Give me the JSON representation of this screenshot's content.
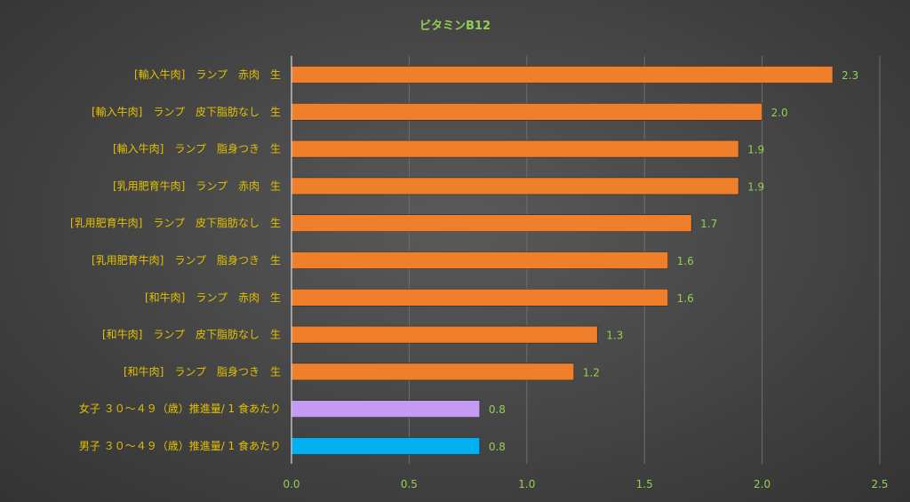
{
  "chart_data": {
    "type": "bar",
    "orientation": "horizontal",
    "title": "ビタミンB12",
    "xlim": [
      0,
      2.5
    ],
    "x_ticks": [
      "0.0",
      "0.5",
      "1.0",
      "1.5",
      "2.0",
      "2.5"
    ],
    "x_tick_values": [
      0,
      0.5,
      1.0,
      1.5,
      2.0,
      2.5
    ],
    "grid": true,
    "categories": [
      "[輸入牛肉]　ランプ　赤肉　生",
      "[輸入牛肉]　ランプ　皮下脂肪なし　生",
      "[輸入牛肉]　ランプ　脂身つき　生",
      "[乳用肥育牛肉]　ランプ　赤肉　生",
      "[乳用肥育牛肉]　ランプ　皮下脂肪なし　生",
      "[乳用肥育牛肉]　ランプ　脂身つき　生",
      "[和牛肉]　ランプ　赤肉　生",
      "[和牛肉]　ランプ　皮下脂肪なし　生",
      "[和牛肉]　ランプ　脂身つき　生",
      "女子 ３０～４９（歳）推進量/ 1 食あたり",
      "男子 ３０～４９（歳）推進量/ 1 食あたり"
    ],
    "values": [
      2.3,
      2.0,
      1.9,
      1.9,
      1.7,
      1.6,
      1.6,
      1.3,
      1.2,
      0.8,
      0.8
    ],
    "value_labels": [
      "2.3",
      "2.0",
      "1.9",
      "1.9",
      "1.7",
      "1.6",
      "1.6",
      "1.3",
      "1.2",
      "0.8",
      "0.8"
    ],
    "colors": [
      "#f07f2c",
      "#f07f2c",
      "#f07f2c",
      "#f07f2c",
      "#f07f2c",
      "#f07f2c",
      "#f07f2c",
      "#f07f2c",
      "#f07f2c",
      "#c39bf5",
      "#00b0f0"
    ]
  }
}
